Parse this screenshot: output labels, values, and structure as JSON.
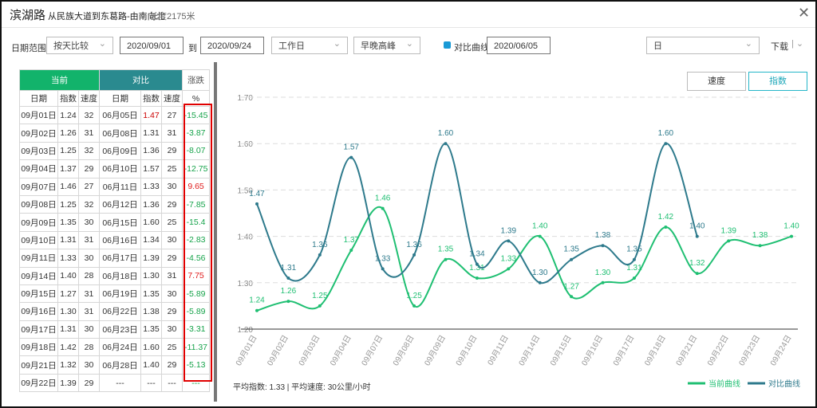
{
  "header": {
    "title": "滨湖路",
    "route": "从民族大道到东葛路-由南向北",
    "length": "长度2175米"
  },
  "toolbar": {
    "date_range_label": "日期范围",
    "compare_mode": "按天比较",
    "start_date": "2020/09/01",
    "to": "到",
    "end_date": "2020/09/24",
    "day_type": "工作日",
    "period": "早晚高峰",
    "compare_checkbox": "对比曲线",
    "compare_date": "2020/06/05",
    "granularity": "日",
    "download": "下载"
  },
  "table": {
    "groups": [
      "当前",
      "对比",
      "涨跌"
    ],
    "columns": [
      "日期",
      "指数",
      "速度",
      "日期",
      "指数",
      "速度",
      "%"
    ],
    "rows": [
      [
        "09月01日",
        "1.24",
        "32",
        "06月05日",
        "1.47",
        "27",
        "-15.45"
      ],
      [
        "09月02日",
        "1.26",
        "31",
        "06月08日",
        "1.31",
        "31",
        "-3.87"
      ],
      [
        "09月03日",
        "1.25",
        "32",
        "06月09日",
        "1.36",
        "29",
        "-8.07"
      ],
      [
        "09月04日",
        "1.37",
        "29",
        "06月10日",
        "1.57",
        "25",
        "-12.75"
      ],
      [
        "09月07日",
        "1.46",
        "27",
        "06月11日",
        "1.33",
        "30",
        "9.65"
      ],
      [
        "09月08日",
        "1.25",
        "32",
        "06月12日",
        "1.36",
        "29",
        "-7.85"
      ],
      [
        "09月09日",
        "1.35",
        "30",
        "06月15日",
        "1.60",
        "25",
        "-15.4"
      ],
      [
        "09月10日",
        "1.31",
        "31",
        "06月16日",
        "1.34",
        "30",
        "-2.83"
      ],
      [
        "09月11日",
        "1.33",
        "30",
        "06月17日",
        "1.39",
        "29",
        "-4.56"
      ],
      [
        "09月14日",
        "1.40",
        "28",
        "06月18日",
        "1.30",
        "31",
        "7.75"
      ],
      [
        "09月15日",
        "1.27",
        "31",
        "06月19日",
        "1.35",
        "30",
        "-5.89"
      ],
      [
        "09月16日",
        "1.30",
        "31",
        "06月22日",
        "1.38",
        "29",
        "-5.89"
      ],
      [
        "09月17日",
        "1.31",
        "30",
        "06月23日",
        "1.35",
        "30",
        "-3.31"
      ],
      [
        "09月18日",
        "1.42",
        "28",
        "06月24日",
        "1.60",
        "25",
        "-11.37"
      ],
      [
        "09月21日",
        "1.32",
        "30",
        "06月28日",
        "1.40",
        "29",
        "-5.13"
      ],
      [
        "09月22日",
        "1.39",
        "29",
        "---",
        "---",
        "---",
        "---"
      ]
    ]
  },
  "chart_tabs": [
    "速度",
    "指数"
  ],
  "summary": "平均指数: 1.33  |  平均速度: 30公里/小时",
  "chart_data": {
    "type": "line",
    "categories": [
      "09月01日",
      "09月02日",
      "09月03日",
      "09月04日",
      "09月07日",
      "09月08日",
      "09月09日",
      "09月10日",
      "09月11日",
      "09月14日",
      "09月15日",
      "09月16日",
      "09月17日",
      "09月18日",
      "09月21日",
      "09月22日",
      "09月23日",
      "09月24日"
    ],
    "series": [
      {
        "name": "当前曲线",
        "color": "#1fbf72",
        "values": [
          1.24,
          1.26,
          1.25,
          1.37,
          1.46,
          1.25,
          1.35,
          1.31,
          1.33,
          1.4,
          1.27,
          1.3,
          1.31,
          1.42,
          1.32,
          1.39,
          1.38,
          1.4
        ],
        "value_labels": [
          "1.24",
          "1.26",
          "1.25",
          "1.37",
          "1.46",
          "1.25",
          "1.35",
          "1.31",
          "1.33",
          "1.40",
          "1.27",
          "1.30",
          "1.31",
          "1.42",
          "1.32",
          "1.39",
          "1.38",
          "1.40"
        ]
      },
      {
        "name": "对比曲线",
        "color": "#2e7a8c",
        "values": [
          1.47,
          1.31,
          1.36,
          1.57,
          1.33,
          1.36,
          1.6,
          1.34,
          1.39,
          1.3,
          1.35,
          1.38,
          1.35,
          1.6,
          1.4,
          null,
          null,
          null
        ],
        "value_labels": [
          "1.47",
          "1.31",
          "1.36",
          "1.57",
          "1.33",
          "1.36",
          "1.60",
          "1.34",
          "1.39",
          "1.30",
          "1.35",
          "1.38",
          "1.35",
          "1.60",
          "1.40",
          null,
          null,
          null
        ]
      }
    ],
    "ylim": [
      1.2,
      1.7
    ],
    "yticks": [
      {
        "value": 1.2,
        "label": "1.20"
      },
      {
        "value": 1.3,
        "label": "1.30"
      },
      {
        "value": 1.4,
        "label": "1.40"
      },
      {
        "value": 1.5,
        "label": "1.50"
      },
      {
        "value": 1.6,
        "label": "1.60"
      },
      {
        "value": 1.7,
        "label": "1.70"
      }
    ],
    "grid": true,
    "legend": "bottom-right"
  }
}
